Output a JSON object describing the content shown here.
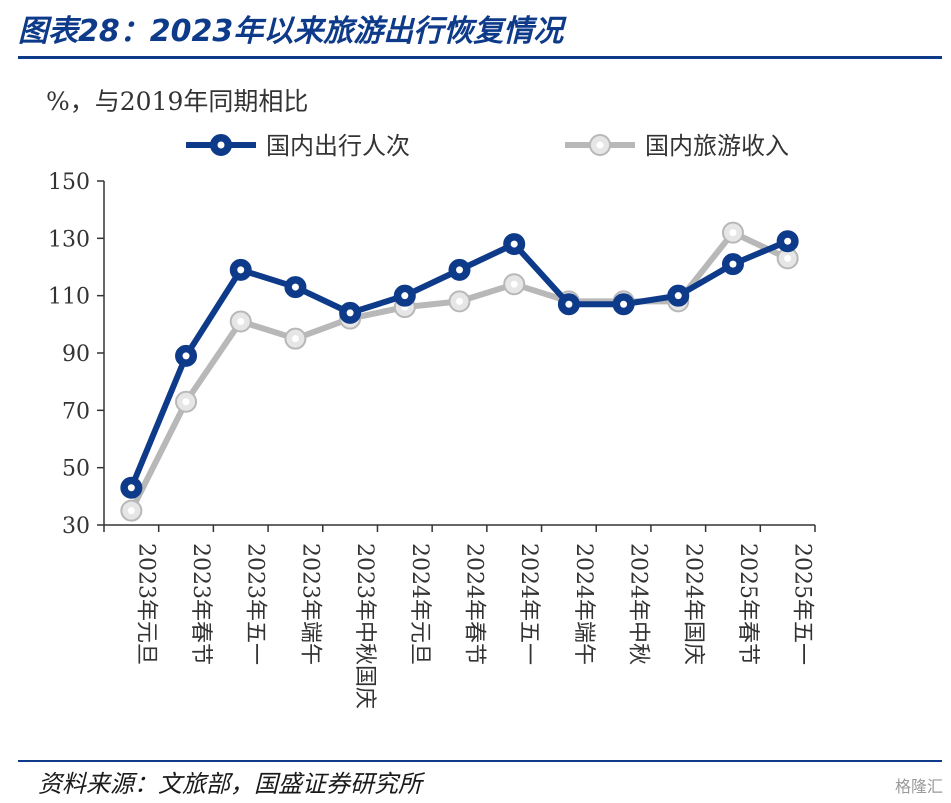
{
  "title": "图表28：2023年以来旅游出行恢复情况",
  "unit_label": "%，与2019年同期相比",
  "source": "资料来源：文旅部，国盛证券研究所",
  "watermark": "格隆汇",
  "colors": {
    "series1": "#0e3a8a",
    "series2": "#b8b8b8",
    "axis": "#333333",
    "rule": "#0e3a8a"
  },
  "chart_data": {
    "type": "line",
    "categories": [
      "2023年元旦",
      "2023年春节",
      "2023年五一",
      "2023年端午",
      "2023年中秋国庆",
      "2024年元旦",
      "2024年春节",
      "2024年五一",
      "2024年端午",
      "2024年中秋",
      "2024年国庆",
      "2025年春节",
      "2025年五一"
    ],
    "series": [
      {
        "name": "国内出行人次",
        "values": [
          43,
          89,
          119,
          113,
          104,
          110,
          119,
          128,
          107,
          107,
          110,
          121,
          129
        ]
      },
      {
        "name": "国内旅游收入",
        "values": [
          35,
          73,
          101,
          95,
          102,
          106,
          108,
          114,
          108,
          108,
          108,
          132,
          123
        ]
      }
    ],
    "ylim": [
      30,
      150
    ],
    "yticks": [
      30,
      50,
      70,
      90,
      110,
      130,
      150
    ],
    "legend": "top",
    "grid": false
  }
}
